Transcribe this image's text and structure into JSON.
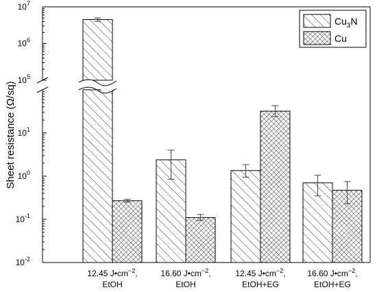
{
  "chart_data": {
    "type": "bar",
    "ylabel": "Sheet resistance (Ω/sq)",
    "yscale": "log",
    "axis_break": {
      "between": [
        100,
        100000
      ]
    },
    "ylim_lower": [
      0.01,
      100
    ],
    "ylim_upper": [
      100000,
      10000000
    ],
    "lower_ticks": [
      "10",
      "-2",
      "10",
      "-1",
      "10",
      "0",
      "10",
      "1"
    ],
    "upper_ticks": [
      "10",
      "5",
      "10",
      "6",
      "10",
      "7"
    ],
    "lower_tick_values": [
      0.01,
      0.1,
      1,
      10
    ],
    "upper_tick_values": [
      100000,
      1000000,
      10000000
    ],
    "categories": [
      {
        "line1": "12.45 J•cm",
        "sup": "−2",
        "line1_end": ",",
        "line2": "EtOH"
      },
      {
        "line1": "16.60 J•cm",
        "sup": "−2",
        "line1_end": ",",
        "line2": "EtOH"
      },
      {
        "line1": "12.45 J•cm",
        "sup": "−2",
        "line1_end": ",",
        "line2": "EtOH+EG"
      },
      {
        "line1": "16.60 J•cm",
        "sup": "−2",
        "line1_end": ",",
        "line2": "EtOH+EG"
      }
    ],
    "series": [
      {
        "name": "Cu",
        "name_sub": "3",
        "name_end": "N",
        "pattern": "hatch",
        "values": [
          4500000,
          2.4,
          1.35,
          0.7
        ],
        "err_low": [
          4000000,
          0.85,
          0.95,
          0.35
        ],
        "err_high": [
          5000000,
          4.0,
          1.85,
          1.05
        ]
      },
      {
        "name": "Cu",
        "name_sub": "",
        "name_end": "",
        "pattern": "crosshatch",
        "values": [
          0.27,
          0.11,
          32,
          0.47
        ],
        "err_low": [
          0.25,
          0.095,
          24,
          0.23
        ],
        "err_high": [
          0.29,
          0.13,
          43,
          0.75
        ]
      }
    ],
    "legend_position": "top-right",
    "grid": false
  }
}
